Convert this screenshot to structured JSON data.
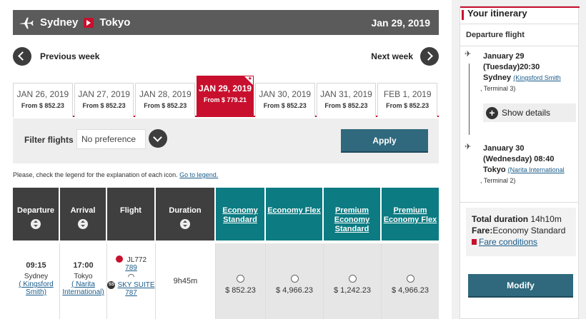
{
  "route": {
    "origin": "Sydney",
    "destination": "Tokyo",
    "date": "Jan 29, 2019"
  },
  "week_nav": {
    "prev_label": "Previous week",
    "next_label": "Next week"
  },
  "date_tabs": [
    {
      "date": "JAN 26, 2019",
      "price": "From $ 852.23"
    },
    {
      "date": "JAN 27, 2019",
      "price": "From $ 852.23"
    },
    {
      "date": "JAN 28, 2019",
      "price": "From $ 852.23"
    },
    {
      "date": "JAN 29, 2019",
      "price": "From $ 779.21",
      "selected": true
    },
    {
      "date": "JAN 30, 2019",
      "price": "From $ 852.23"
    },
    {
      "date": "JAN 31, 2019",
      "price": "From $ 852.23"
    },
    {
      "date": "FEB 1, 2019",
      "price": "From $ 852.23"
    }
  ],
  "filter": {
    "label": "Filter flights",
    "value": "No preference",
    "apply_label": "Apply"
  },
  "legend_note": {
    "text": "Please, check the legend for the explanation of each icon.",
    "link": "Go to legend."
  },
  "table": {
    "headers": {
      "departure": "Departure",
      "arrival": "Arrival",
      "flight": "Flight",
      "duration": "Duration",
      "economy_standard": "Economy Standard",
      "economy_flex": "Economy Flex",
      "premium_economy_standard": "Premium Economy Standard",
      "premium_economy_flex": "Premium Economy Flex"
    },
    "row": {
      "dep_time": "09:15",
      "dep_city": "Sydney",
      "dep_airport": "( Kingsford Smith)",
      "arr_time": "17:00",
      "arr_city": "Tokyo",
      "arr_airport": "( Narita International)",
      "flight_code": "JL772",
      "flight_num": "789",
      "aircraft": "SKY SUITE 787",
      "aircraft_badge": "SS",
      "duration": "9h45m",
      "fares": [
        "$ 852.23",
        "$ 4,966.23",
        "$ 1,242.23",
        "$ 4,966.23"
      ]
    }
  },
  "itinerary": {
    "title": "Your itinerary",
    "departure_label": "Departure flight",
    "dep": {
      "line1": "January 29",
      "line2": "(Tuesday)20:30",
      "city": "Sydney",
      "airport": "(Kingsford Smith",
      "terminal": ", Terminal  3)"
    },
    "show_details": "Show details",
    "arr": {
      "line1": "January 30",
      "line2": "(Wednesday) 08:40",
      "city": "Tokyo",
      "airport": "(Narita International",
      "terminal": ", Terminal   2)"
    },
    "total_duration_label": "Total duration",
    "total_duration_value": "14h10m",
    "fare_label": "Fare:",
    "fare_value": "Economy Standard",
    "fare_conditions": "Fare conditions",
    "modify_label": "Modify"
  },
  "colors": {
    "brand_red": "#c8102e",
    "header_gray": "#5b5b5b",
    "teal": "#0c7b82",
    "button_blue": "#30697e"
  }
}
